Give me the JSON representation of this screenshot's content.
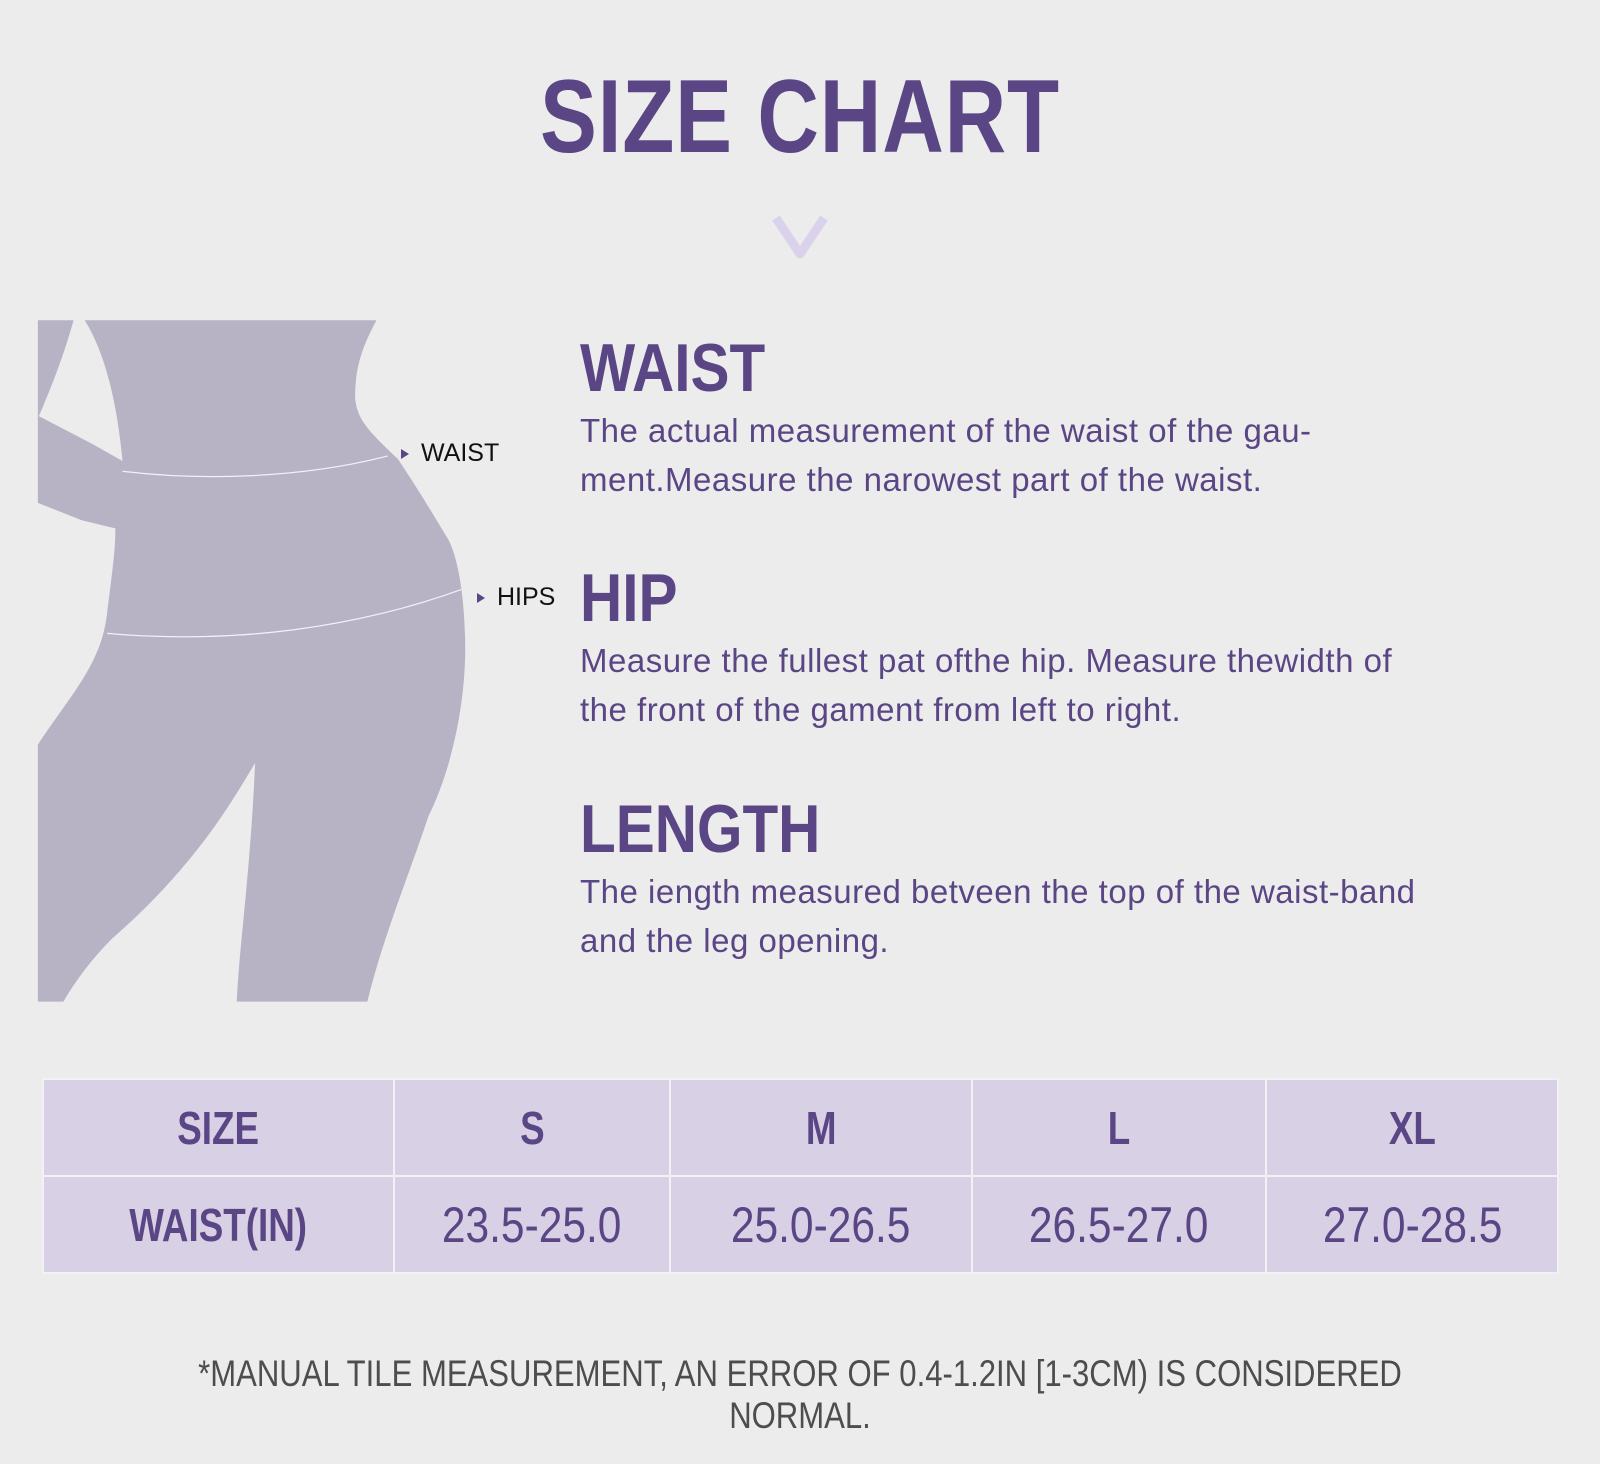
{
  "title": "SIZE CHART",
  "colors": {
    "accent": "#5b4685",
    "silhouette": "#b8b2c5",
    "table_bg": "#d8d0e5",
    "background": "#ececec"
  },
  "icons": {
    "divider": "chevron-down-icon",
    "marker": "triangle-right-icon"
  },
  "figure": {
    "waist_label": "WAIST",
    "hips_label": "HIPS"
  },
  "sections": [
    {
      "heading": "WAIST",
      "text": "The actual measurement of the waist of the gau-\nment.Measure the narowest part of the waist."
    },
    {
      "heading": "HIP",
      "text": "Measure the fullest pat ofthe hip. Measure thewidth of\nthe front of the gament from left to right."
    },
    {
      "heading": "LENGTH",
      "text": "The iength measured betveen the top of the waist-band\nand the leg opening."
    }
  ],
  "table": {
    "header": [
      "SIZE",
      "S",
      "M",
      "L",
      "XL"
    ],
    "rows": [
      [
        "WAIST(IN)",
        "23.5-25.0",
        "25.0-26.5",
        "26.5-27.0",
        "27.0-28.5"
      ]
    ]
  },
  "note": "*MANUAL TILE MEASUREMENT, AN ERROR OF 0.4-1.2IN [1-3CM) IS CONSIDERED NORMAL."
}
